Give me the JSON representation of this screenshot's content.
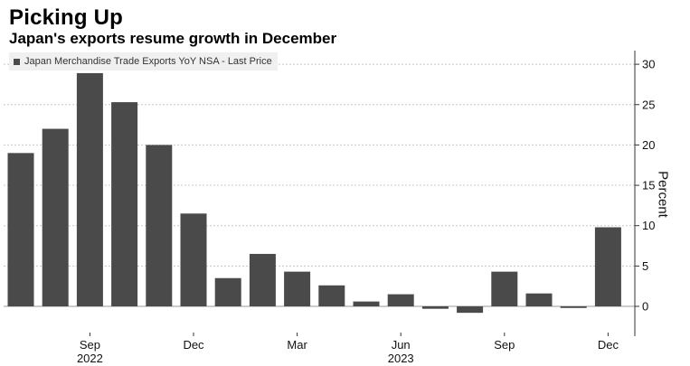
{
  "header": {
    "title": "Picking Up",
    "subtitle": "Japan's exports resume growth in December"
  },
  "colors": {
    "bar": "#4a4a4a",
    "grid": "#c8c8c8",
    "axis": "#333333"
  },
  "chart_data": {
    "type": "bar",
    "title": "Picking Up",
    "subtitle": "Japan's exports resume growth in December",
    "ylabel": "Percent",
    "xlabel": "",
    "ylim": [
      -4,
      32
    ],
    "yticks": [
      0,
      5,
      10,
      15,
      20,
      25,
      30
    ],
    "grid": true,
    "y_axis_side": "right",
    "legend": {
      "position": "top-left"
    },
    "categories": [
      "Jul 2022",
      "Aug 2022",
      "Sep 2022",
      "Oct 2022",
      "Nov 2022",
      "Dec 2022",
      "Jan 2023",
      "Feb 2023",
      "Mar 2023",
      "Apr 2023",
      "May 2023",
      "Jun 2023",
      "Jul 2023",
      "Aug 2023",
      "Sep 2023",
      "Oct 2023",
      "Nov 2023",
      "Dec 2023"
    ],
    "series": [
      {
        "name": "Japan Merchandise Trade Exports YoY NSA - Last Price",
        "values": [
          19.0,
          22.0,
          28.9,
          25.3,
          20.0,
          11.5,
          3.5,
          6.5,
          4.3,
          2.6,
          0.6,
          1.5,
          -0.3,
          -0.8,
          4.3,
          1.6,
          -0.2,
          9.8
        ]
      }
    ],
    "x_tick_labels": [
      {
        "index": 2,
        "label": "Sep",
        "year": "2022"
      },
      {
        "index": 5,
        "label": "Dec",
        "year": ""
      },
      {
        "index": 8,
        "label": "Mar",
        "year": ""
      },
      {
        "index": 11,
        "label": "Jun",
        "year": "2023"
      },
      {
        "index": 14,
        "label": "Sep",
        "year": ""
      },
      {
        "index": 17,
        "label": "Dec",
        "year": ""
      }
    ]
  }
}
